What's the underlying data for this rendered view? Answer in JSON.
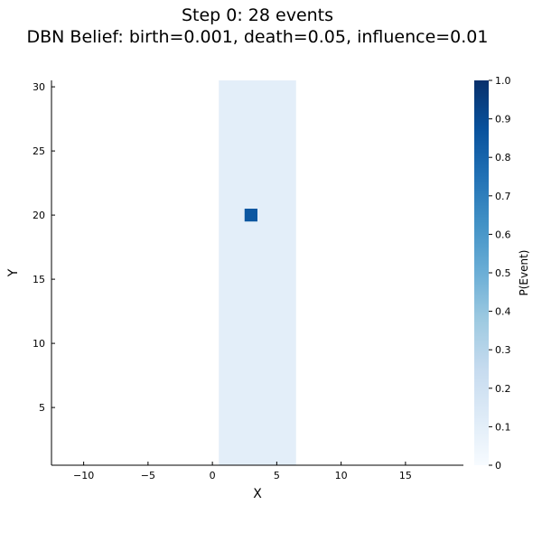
{
  "chart_data": {
    "type": "heatmap",
    "title_line1": "Step 0: 28 events",
    "title_line2": "DBN Belief: birth=0.001, death=0.05, influence=0.01",
    "xlabel": "X",
    "ylabel": "Y",
    "xlim": [
      -12.5,
      19.5
    ],
    "ylim": [
      0.5,
      30.5
    ],
    "xticks": [
      -10,
      -5,
      0,
      5,
      10,
      15
    ],
    "xtick_labels": [
      "−10",
      "−5",
      "0",
      "5",
      "10",
      "15"
    ],
    "yticks": [
      5,
      10,
      15,
      20,
      25,
      30
    ],
    "ytick_labels": [
      "5",
      "10",
      "15",
      "20",
      "25",
      "30"
    ],
    "colorbar": {
      "label": "P(Event)",
      "colormap": "Blues",
      "range": [
        0,
        1
      ],
      "ticks": [
        0,
        0.1,
        0.2,
        0.3,
        0.4,
        0.5,
        0.6,
        0.7,
        0.8,
        0.9,
        1.0
      ],
      "tick_labels": [
        "0",
        "0.1",
        "0.2",
        "0.3",
        "0.4",
        "0.5",
        "0.6",
        "0.7",
        "0.8",
        "0.9",
        "1.0"
      ]
    },
    "regions": [
      {
        "x": [
          0.5,
          6.5
        ],
        "y": [
          0.5,
          30.5
        ],
        "value": 0.1
      },
      {
        "x": [
          2.5,
          3.5
        ],
        "y": [
          19.5,
          20.5
        ],
        "value": 0.85
      }
    ],
    "grid": false
  }
}
